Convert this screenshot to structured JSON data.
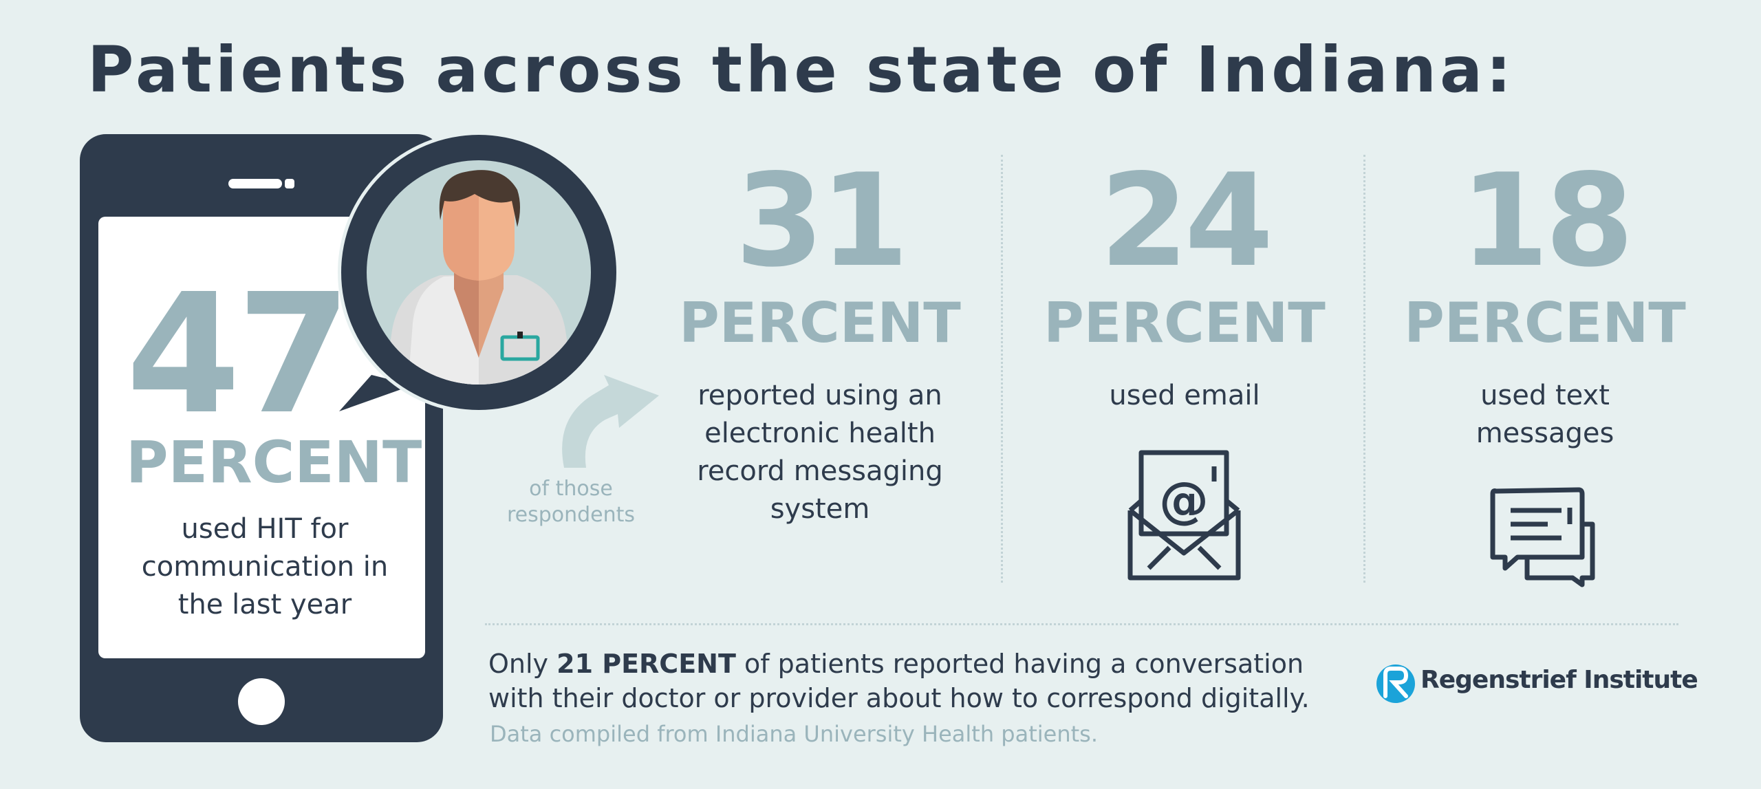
{
  "title": "Patients across the state of Indiana:",
  "main_stat": {
    "value": "47",
    "unit": "PERCENT",
    "description": [
      "used HIT for",
      "communication in",
      "the last year"
    ]
  },
  "arrow_label": [
    "of those",
    "respondents"
  ],
  "stats": [
    {
      "value": "31",
      "unit": "PERCENT",
      "description": [
        "reported using an",
        "electronic health",
        "record messaging",
        "system"
      ]
    },
    {
      "value": "24",
      "unit": "PERCENT",
      "description": [
        "used email"
      ],
      "icon": "email-envelope-icon"
    },
    {
      "value": "18",
      "unit": "PERCENT",
      "description": [
        "used text",
        "messages"
      ],
      "icon": "chat-bubbles-icon"
    }
  ],
  "note": {
    "prefix": "Only ",
    "highlight": "21 PERCENT",
    "line1_rest": " of patients reported having a conversation",
    "line2": "with their doctor or provider about how to correspond digitally."
  },
  "source": "Data compiled from Indiana University Health patients.",
  "logo": {
    "name": "Regenstrief Institute"
  },
  "colors": {
    "background": "#e7f0f0",
    "dark": "#2e3b4c",
    "muted": "#9ab4bb",
    "accent_teal": "#2aa7a0",
    "logo_blue": "#1ba3d9"
  },
  "icons": [
    "phone-icon",
    "doctor-avatar-icon",
    "curved-arrow-icon",
    "email-envelope-icon",
    "chat-bubbles-icon",
    "regenstrief-logo-icon"
  ]
}
